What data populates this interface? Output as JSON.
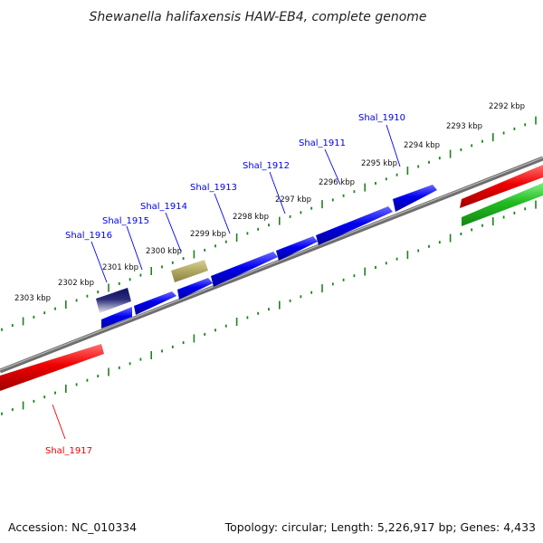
{
  "title": "Shewanella halifaxensis HAW-EB4, complete genome",
  "accession": "Accession: NC_010334",
  "summary": "Topology: circular; Length: 5,226,917 bp; Genes: 4,433",
  "colors": {
    "forward_cds": "#0000ee",
    "reverse_cds": "#ee0000",
    "rna": "#22bb22",
    "other_feature": "#b0a860",
    "highlight": "#101060",
    "backbone": "#808080",
    "ticks": "#208020"
  },
  "kbp_ticks": [
    "2292 kbp",
    "2293 kbp",
    "2294 kbp",
    "2295 kbp",
    "2296 kbp",
    "2297 kbp",
    "2298 kbp",
    "2299 kbp",
    "2300 kbp",
    "2301 kbp",
    "2302 kbp",
    "2303 kbp"
  ],
  "gene_labels_forward": [
    "Shal_1910",
    "Shal_1911",
    "Shal_1912",
    "Shal_1913",
    "Shal_1914",
    "Shal_1915",
    "Shal_1916"
  ],
  "gene_labels_reverse": [
    "Shal_1917"
  ]
}
